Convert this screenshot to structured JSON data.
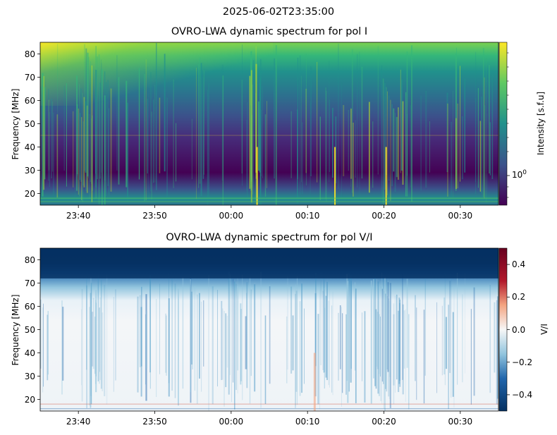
{
  "figure": {
    "suptitle": "2025-06-02T23:35:00"
  },
  "chart_data": [
    {
      "type": "heatmap",
      "title": "OVRO-LWA dynamic spectrum for pol I",
      "ylabel": "Frequency [MHz]",
      "xlabel": "",
      "x_tick_labels": [
        "23:40",
        "23:50",
        "00:00",
        "00:10",
        "00:20",
        "00:30"
      ],
      "x_tick_minutes": [
        5,
        15,
        25,
        35,
        45,
        55
      ],
      "xlim_minutes": [
        0,
        60
      ],
      "y_ticks": [
        20,
        30,
        40,
        50,
        60,
        70,
        80
      ],
      "ylim": [
        15,
        85
      ],
      "colormap": "viridis",
      "colorbar": {
        "label": "Intensity [s.f.u]",
        "scale": "log",
        "tick_label": "10^0",
        "tick_value": 1
      },
      "colors": {
        "low": "#440154",
        "mid": "#21918c",
        "high": "#fde725"
      },
      "features": {
        "bright_top_band_MHz": [
          70,
          85
        ],
        "dark_trough_MHz": [
          22,
          45
        ],
        "horizontal_line_MHz": 45
      }
    },
    {
      "type": "heatmap",
      "title": "OVRO-LWA dynamic spectrum for pol V/I",
      "ylabel": "Frequency [MHz]",
      "xlabel": "",
      "x_tick_labels": [
        "23:40",
        "23:50",
        "00:00",
        "00:10",
        "00:20",
        "00:30"
      ],
      "x_tick_minutes": [
        5,
        15,
        25,
        35,
        45,
        55
      ],
      "xlim_minutes": [
        0,
        60
      ],
      "y_ticks": [
        20,
        30,
        40,
        50,
        60,
        70,
        80
      ],
      "ylim": [
        15,
        85
      ],
      "colormap": "RdBu_r",
      "colorbar": {
        "label": "V/I",
        "ticks": [
          0.4,
          0.2,
          0.0,
          -0.2,
          -0.4
        ],
        "tick_labels": [
          "0.4",
          "0.2",
          "0.0",
          "−0.2",
          "−0.4"
        ],
        "range": [
          -0.5,
          0.5
        ]
      },
      "colors": {
        "neg": "#053061",
        "zero": "#f7f7f7",
        "pos": "#67001f"
      },
      "features": {
        "saturated_negative_above_MHz": 72
      }
    }
  ]
}
